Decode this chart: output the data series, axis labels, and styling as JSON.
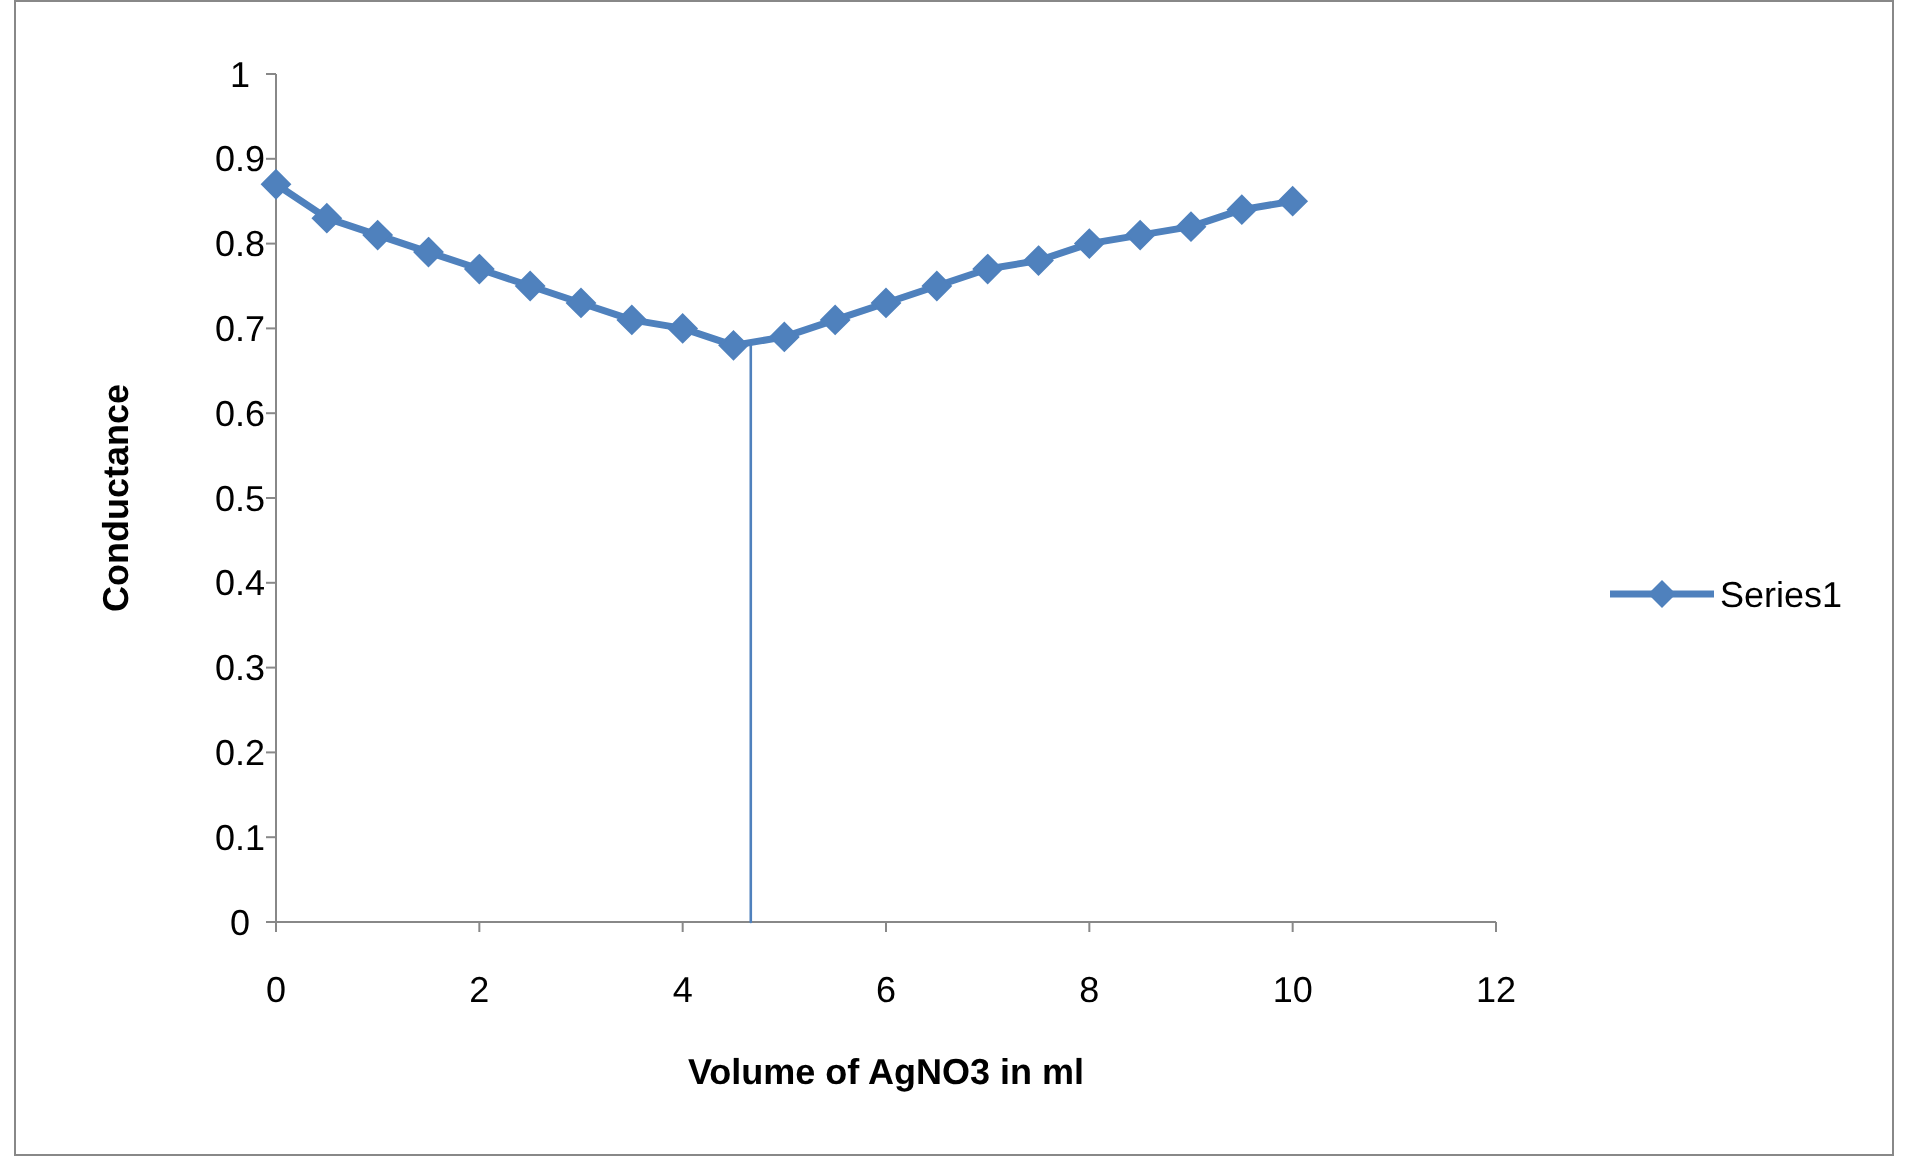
{
  "chart_data": {
    "type": "line",
    "xlabel": "Volume of AgNO3 in ml",
    "ylabel": "Conductance",
    "xlim": [
      0,
      12
    ],
    "xticks": [
      0,
      2,
      4,
      6,
      8,
      10,
      12
    ],
    "ylim": [
      0,
      1
    ],
    "yticks": [
      0,
      0.1,
      0.2,
      0.3,
      0.4,
      0.5,
      0.6,
      0.7,
      0.8,
      0.9,
      1
    ],
    "grid": false,
    "legend": "right",
    "series": [
      {
        "name": "Series1",
        "color": "#4f81bd",
        "marker": "diamond",
        "x": [
          0,
          0.5,
          1,
          1.5,
          2,
          2.5,
          3,
          3.5,
          4,
          4.5,
          5,
          5.5,
          6,
          6.5,
          7,
          7.5,
          8,
          8.5,
          9,
          9.5,
          10
        ],
        "values": [
          0.87,
          0.83,
          0.81,
          0.79,
          0.77,
          0.75,
          0.73,
          0.71,
          0.7,
          0.68,
          0.69,
          0.71,
          0.73,
          0.75,
          0.77,
          0.78,
          0.8,
          0.81,
          0.82,
          0.84,
          0.85
        ]
      },
      {
        "type": "line",
        "color": "#4f81bd",
        "marker": "none",
        "x": [
          4.67,
          4.67
        ],
        "values": [
          0,
          0.68
        ]
      }
    ]
  }
}
